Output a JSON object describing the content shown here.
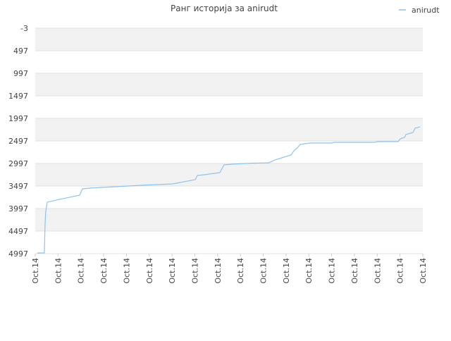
{
  "chart_data": {
    "type": "line",
    "title": "Ранг историја за anirudt",
    "x": [
      0.09,
      0.4,
      0.43,
      0.46,
      0.53,
      0.93,
      1.95,
      2.07,
      2.41,
      2.94,
      3.55,
      4.64,
      6.03,
      7.02,
      7.11,
      7.42,
      8.1,
      8.28,
      8.65,
      9.27,
      10.26,
      10.51,
      11.22,
      11.37,
      11.5,
      11.62,
      12.05,
      12.98,
      13.11,
      14.84,
      15.05,
      15.92,
      16.01,
      16.2,
      16.26,
      16.57,
      16.66,
      16.88
    ],
    "series": [
      {
        "name": "anirudt",
        "color": "#8ec2ef",
        "values": [
          4981,
          4981,
          4372,
          4059,
          3856,
          3809,
          3700,
          3559,
          3544,
          3528,
          3513,
          3481,
          3450,
          3356,
          3263,
          3247,
          3200,
          3028,
          3013,
          2997,
          2981,
          2919,
          2809,
          2700,
          2653,
          2575,
          2544,
          2544,
          2528,
          2528,
          2513,
          2513,
          2450,
          2419,
          2356,
          2309,
          2216,
          2184
        ]
      }
    ],
    "xlim": [
      0,
      17
    ],
    "xticks": [
      {
        "value": 0,
        "label": "Oct.14"
      },
      {
        "value": 1,
        "label": "Oct.14"
      },
      {
        "value": 2,
        "label": "Oct.14"
      },
      {
        "value": 3,
        "label": "Oct.14"
      },
      {
        "value": 4,
        "label": "Oct.14"
      },
      {
        "value": 5,
        "label": "Oct.14"
      },
      {
        "value": 6,
        "label": "Oct.14"
      },
      {
        "value": 7,
        "label": "Oct.14"
      },
      {
        "value": 8,
        "label": "Oct.14"
      },
      {
        "value": 9,
        "label": "Oct.14"
      },
      {
        "value": 10,
        "label": "Oct.14"
      },
      {
        "value": 11,
        "label": "Oct.14"
      },
      {
        "value": 12,
        "label": "Oct.14"
      },
      {
        "value": 13,
        "label": "Oct.14"
      },
      {
        "value": 14,
        "label": "Oct.14"
      },
      {
        "value": 15,
        "label": "Oct.14"
      },
      {
        "value": 16,
        "label": "Oct.14"
      },
      {
        "value": 17,
        "label": "Oct.14"
      }
    ],
    "ylim": [
      -3,
      4997
    ],
    "y_inverted": true,
    "yticks": [
      -3,
      497,
      997,
      1497,
      1997,
      2497,
      2997,
      3497,
      3997,
      4497,
      4997
    ],
    "grid": true,
    "legend": "top-right"
  }
}
